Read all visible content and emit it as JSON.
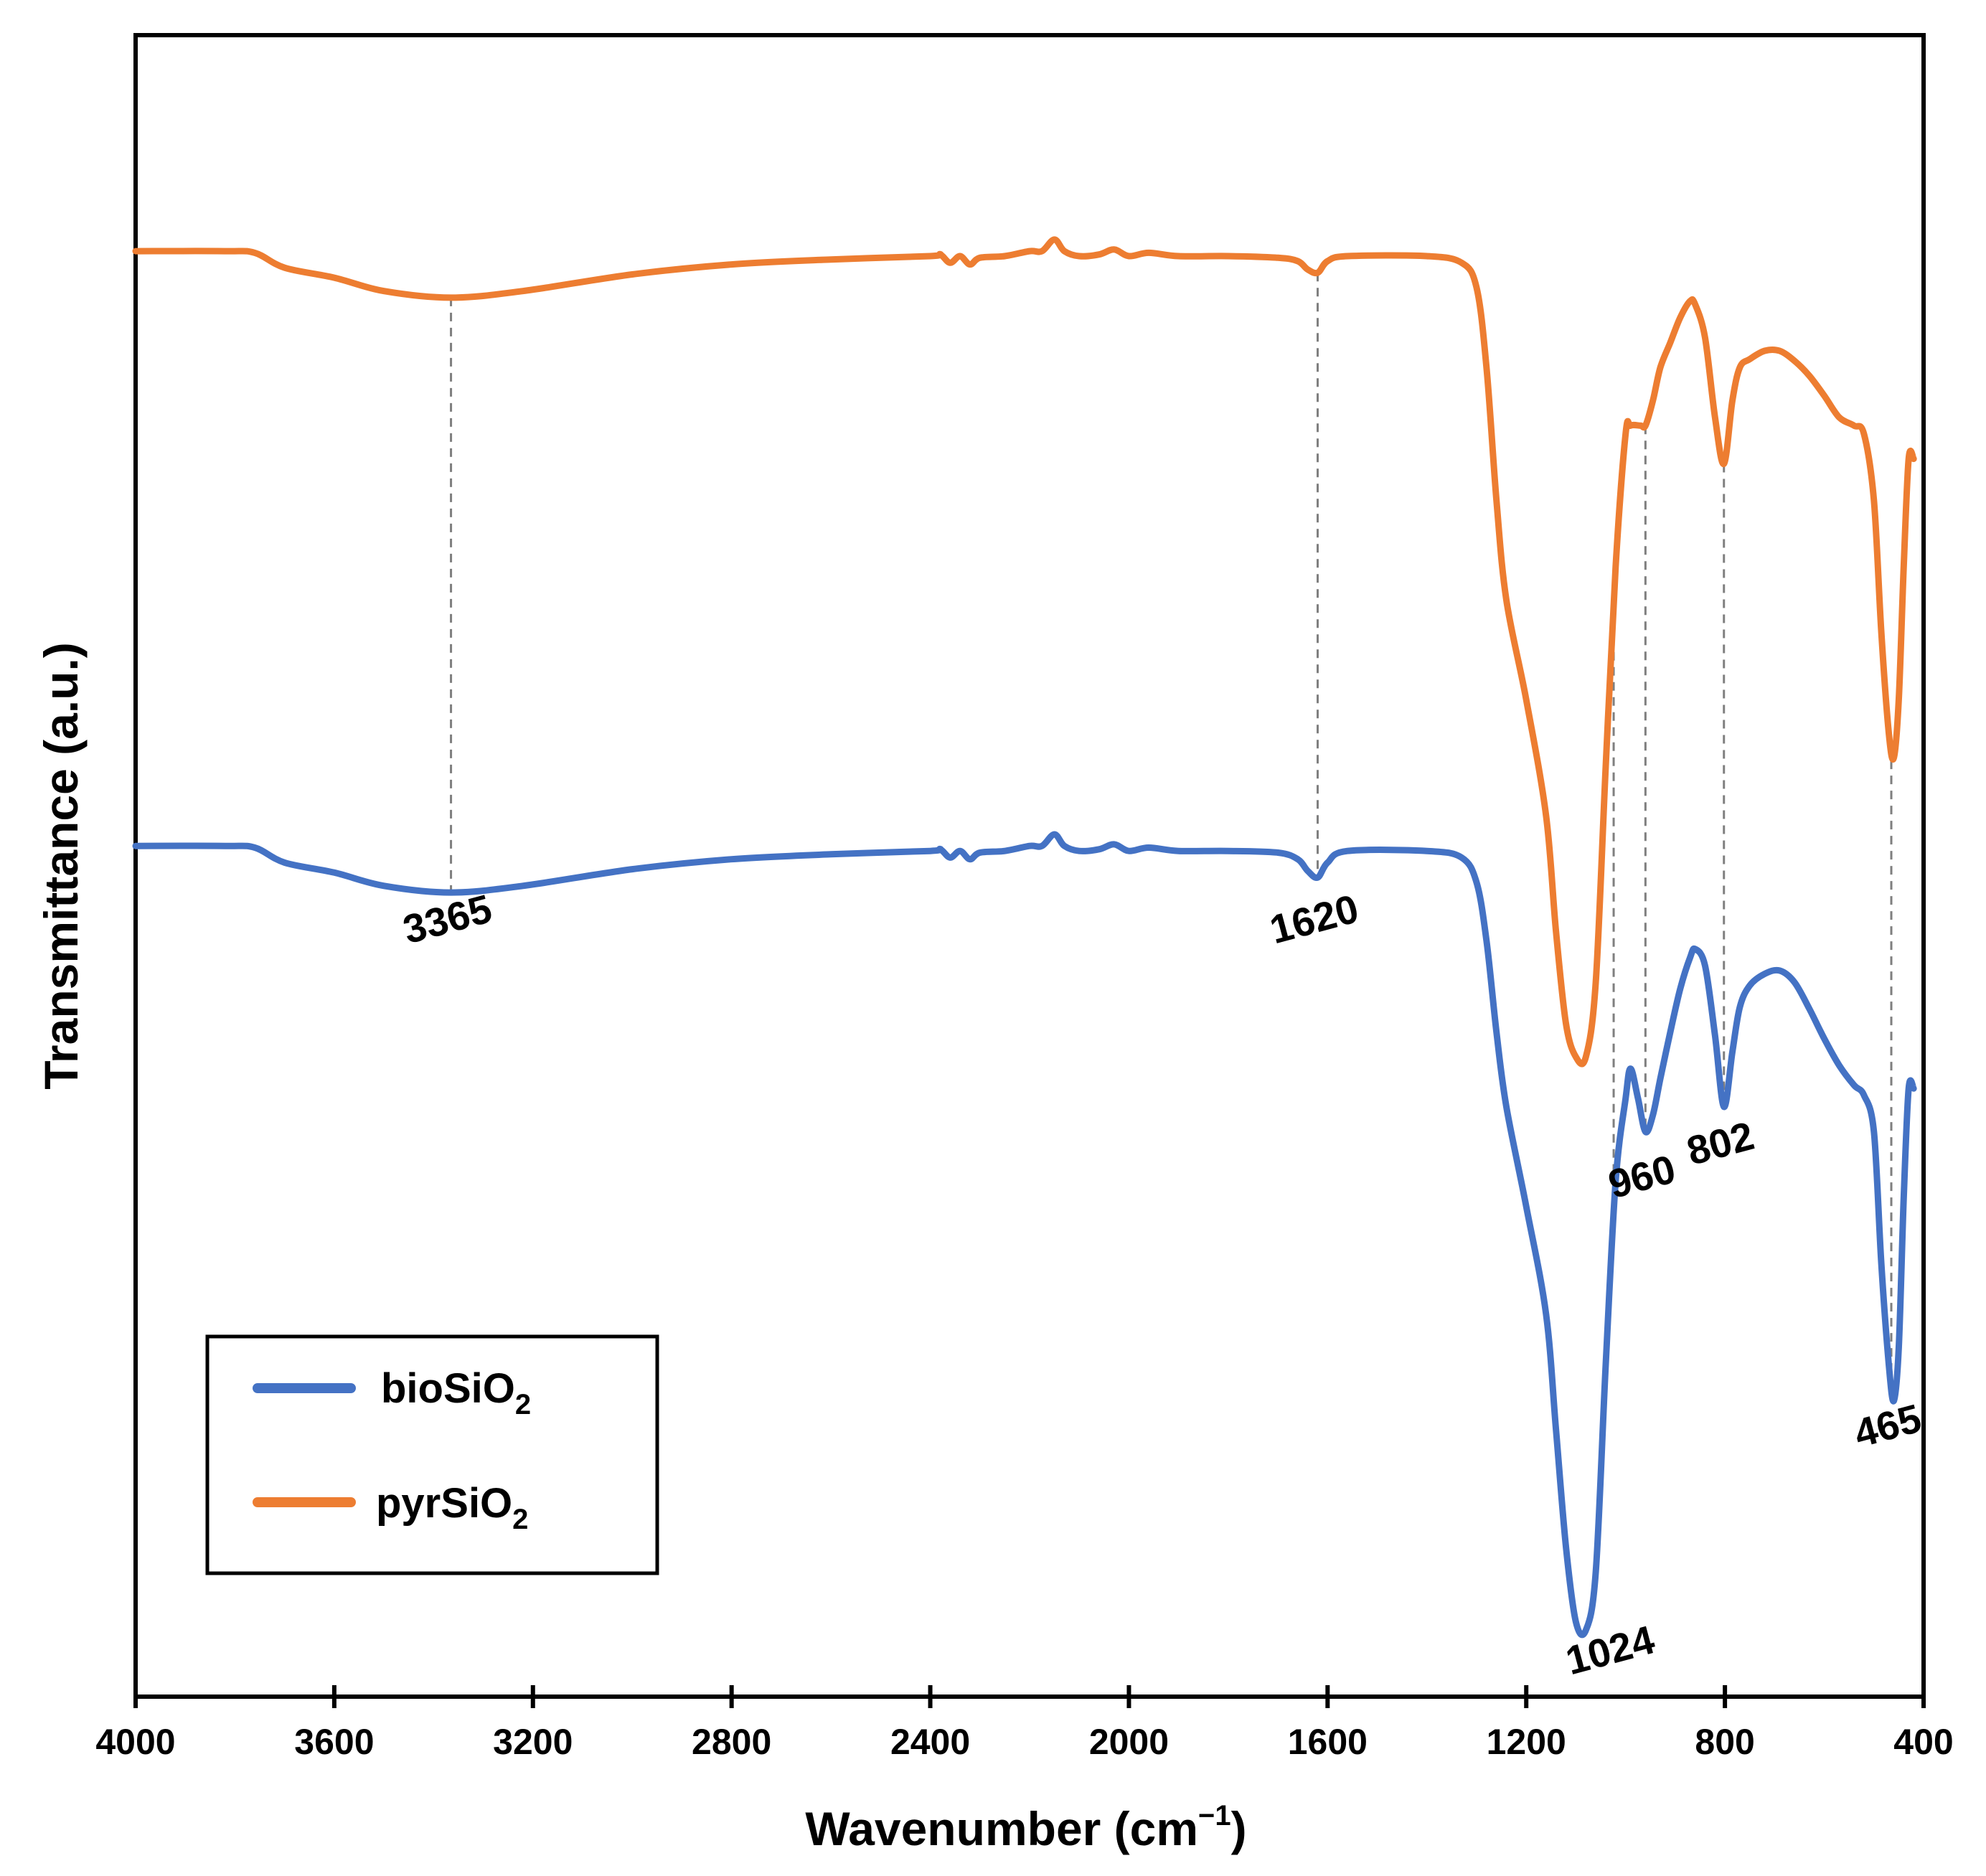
{
  "chart_data": {
    "type": "line",
    "title": "",
    "xlabel": "Wavenumber (cm",
    "xlabel_sup": "−1",
    "xlabel_close": ")",
    "ylabel": "Transmittance (a.u.)",
    "xlim": [
      4000,
      400
    ],
    "x_reversed": true,
    "ylim": [
      0,
      1
    ],
    "y_ticks_shown": false,
    "grid": false,
    "x_ticks": [
      "4000",
      "3600",
      "3200",
      "2800",
      "2400",
      "2000",
      "1600",
      "1200",
      "800",
      "400"
    ],
    "legend": {
      "position": "bottom-left",
      "boxed": true,
      "entries": [
        {
          "name": "bioSiO",
          "sub": "2",
          "color": "#4472C4"
        },
        {
          "name": "pyrSiO",
          "sub": "2",
          "color": "#ED7D31"
        }
      ]
    },
    "series": [
      {
        "name": "bioSiO2",
        "color": "#4472C4",
        "points": [
          [
            4000,
            0.512
          ],
          [
            3820,
            0.512
          ],
          [
            3760,
            0.511
          ],
          [
            3700,
            0.502
          ],
          [
            3600,
            0.496
          ],
          [
            3500,
            0.488
          ],
          [
            3365,
            0.484
          ],
          [
            3220,
            0.488
          ],
          [
            3000,
            0.498
          ],
          [
            2800,
            0.504
          ],
          [
            2600,
            0.507
          ],
          [
            2400,
            0.509
          ],
          [
            2380,
            0.51
          ],
          [
            2360,
            0.505
          ],
          [
            2340,
            0.509
          ],
          [
            2320,
            0.504
          ],
          [
            2300,
            0.508
          ],
          [
            2250,
            0.509
          ],
          [
            2200,
            0.512
          ],
          [
            2175,
            0.512
          ],
          [
            2150,
            0.519
          ],
          [
            2130,
            0.512
          ],
          [
            2100,
            0.509
          ],
          [
            2060,
            0.51
          ],
          [
            2030,
            0.513
          ],
          [
            2000,
            0.509
          ],
          [
            1960,
            0.511
          ],
          [
            1900,
            0.509
          ],
          [
            1800,
            0.509
          ],
          [
            1700,
            0.508
          ],
          [
            1660,
            0.504
          ],
          [
            1640,
            0.497
          ],
          [
            1620,
            0.493
          ],
          [
            1600,
            0.502
          ],
          [
            1560,
            0.509
          ],
          [
            1400,
            0.509
          ],
          [
            1330,
            0.505
          ],
          [
            1300,
            0.49
          ],
          [
            1280,
            0.455
          ],
          [
            1260,
            0.4
          ],
          [
            1240,
            0.355
          ],
          [
            1200,
            0.295
          ],
          [
            1160,
            0.23
          ],
          [
            1140,
            0.16
          ],
          [
            1120,
            0.09
          ],
          [
            1100,
            0.045
          ],
          [
            1080,
            0.04
          ],
          [
            1060,
            0.075
          ],
          [
            1040,
            0.2
          ],
          [
            1020,
            0.31
          ],
          [
            1000,
            0.36
          ],
          [
            990,
            0.378
          ],
          [
            975,
            0.36
          ],
          [
            960,
            0.34
          ],
          [
            945,
            0.35
          ],
          [
            930,
            0.372
          ],
          [
            910,
            0.4
          ],
          [
            890,
            0.426
          ],
          [
            870,
            0.445
          ],
          [
            860,
            0.45
          ],
          [
            840,
            0.44
          ],
          [
            820,
            0.398
          ],
          [
            802,
            0.355
          ],
          [
            785,
            0.388
          ],
          [
            770,
            0.415
          ],
          [
            750,
            0.428
          ],
          [
            720,
            0.435
          ],
          [
            690,
            0.437
          ],
          [
            660,
            0.43
          ],
          [
            630,
            0.414
          ],
          [
            600,
            0.396
          ],
          [
            570,
            0.38
          ],
          [
            540,
            0.368
          ],
          [
            520,
            0.362
          ],
          [
            500,
            0.34
          ],
          [
            485,
            0.26
          ],
          [
            470,
            0.2
          ],
          [
            460,
            0.178
          ],
          [
            450,
            0.21
          ],
          [
            440,
            0.3
          ],
          [
            430,
            0.366
          ],
          [
            420,
            0.366
          ]
        ]
      },
      {
        "name": "pyrSiO2",
        "color": "#ED7D31",
        "points": [
          [
            4000,
            0.87
          ],
          [
            3820,
            0.87
          ],
          [
            3760,
            0.869
          ],
          [
            3700,
            0.86
          ],
          [
            3600,
            0.854
          ],
          [
            3500,
            0.846
          ],
          [
            3365,
            0.842
          ],
          [
            3220,
            0.846
          ],
          [
            3000,
            0.856
          ],
          [
            2800,
            0.862
          ],
          [
            2600,
            0.865
          ],
          [
            2400,
            0.867
          ],
          [
            2380,
            0.868
          ],
          [
            2360,
            0.863
          ],
          [
            2340,
            0.867
          ],
          [
            2320,
            0.862
          ],
          [
            2300,
            0.866
          ],
          [
            2250,
            0.867
          ],
          [
            2200,
            0.87
          ],
          [
            2175,
            0.87
          ],
          [
            2150,
            0.877
          ],
          [
            2130,
            0.87
          ],
          [
            2100,
            0.867
          ],
          [
            2060,
            0.868
          ],
          [
            2030,
            0.871
          ],
          [
            2000,
            0.867
          ],
          [
            1960,
            0.869
          ],
          [
            1900,
            0.867
          ],
          [
            1800,
            0.867
          ],
          [
            1700,
            0.866
          ],
          [
            1660,
            0.864
          ],
          [
            1640,
            0.859
          ],
          [
            1620,
            0.857
          ],
          [
            1600,
            0.864
          ],
          [
            1560,
            0.867
          ],
          [
            1400,
            0.867
          ],
          [
            1330,
            0.863
          ],
          [
            1300,
            0.848
          ],
          [
            1280,
            0.8
          ],
          [
            1260,
            0.72
          ],
          [
            1240,
            0.66
          ],
          [
            1200,
            0.6
          ],
          [
            1160,
            0.53
          ],
          [
            1140,
            0.46
          ],
          [
            1120,
            0.405
          ],
          [
            1100,
            0.385
          ],
          [
            1080,
            0.385
          ],
          [
            1060,
            0.43
          ],
          [
            1040,
            0.56
          ],
          [
            1020,
            0.68
          ],
          [
            1000,
            0.76
          ],
          [
            990,
            0.765
          ],
          [
            970,
            0.765
          ],
          [
            960,
            0.765
          ],
          [
            945,
            0.78
          ],
          [
            930,
            0.8
          ],
          [
            910,
            0.815
          ],
          [
            890,
            0.83
          ],
          [
            870,
            0.84
          ],
          [
            860,
            0.838
          ],
          [
            840,
            0.818
          ],
          [
            820,
            0.77
          ],
          [
            802,
            0.742
          ],
          [
            785,
            0.78
          ],
          [
            770,
            0.8
          ],
          [
            750,
            0.805
          ],
          [
            720,
            0.81
          ],
          [
            690,
            0.81
          ],
          [
            660,
            0.804
          ],
          [
            630,
            0.795
          ],
          [
            600,
            0.783
          ],
          [
            570,
            0.77
          ],
          [
            540,
            0.765
          ],
          [
            520,
            0.76
          ],
          [
            500,
            0.72
          ],
          [
            485,
            0.64
          ],
          [
            470,
            0.58
          ],
          [
            460,
            0.565
          ],
          [
            450,
            0.6
          ],
          [
            440,
            0.68
          ],
          [
            430,
            0.745
          ],
          [
            420,
            0.745
          ]
        ]
      }
    ],
    "guides": [
      3365,
      1620,
      1024,
      960,
      802,
      465
    ],
    "peak_labels": [
      {
        "text": "3365",
        "x": 3365,
        "y": 0.46
      },
      {
        "text": "1620",
        "x": 1620,
        "y": 0.46
      },
      {
        "text": "1024",
        "x": 1024,
        "y": 0.02
      },
      {
        "text": "960",
        "x": 960,
        "y": 0.305
      },
      {
        "text": "802",
        "x": 802,
        "y": 0.325
      },
      {
        "text": "465",
        "x": 465,
        "y": 0.155
      }
    ]
  }
}
